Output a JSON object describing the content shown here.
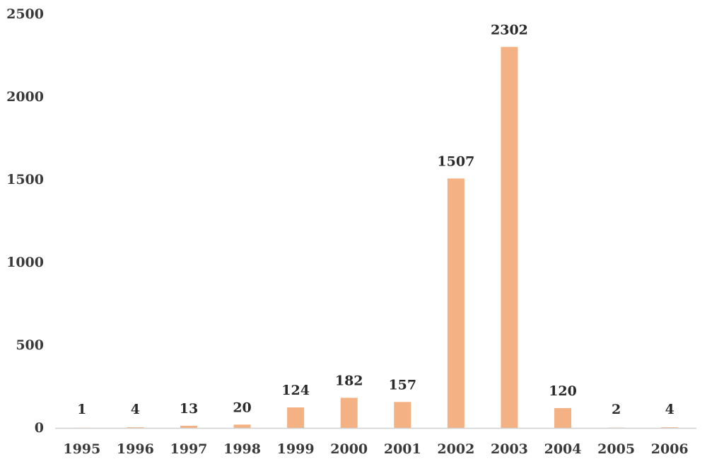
{
  "chart_data": {
    "type": "bar",
    "title": "",
    "xlabel": "",
    "ylabel": "",
    "categories": [
      "1995",
      "1996",
      "1997",
      "1998",
      "1999",
      "2000",
      "2001",
      "2002",
      "2003",
      "2004",
      "2005",
      "2006"
    ],
    "values": [
      1,
      4,
      13,
      20,
      124,
      182,
      157,
      1507,
      2302,
      120,
      2,
      4
    ],
    "data_labels": [
      "1",
      "4",
      "13",
      "20",
      "124",
      "182",
      "157",
      "1507",
      "2302",
      "120",
      "2",
      "4"
    ],
    "ylim": [
      0,
      2500
    ],
    "yticks": [
      "0",
      "500",
      "1000",
      "1500",
      "2000",
      "2500"
    ],
    "grid": false,
    "legend": "none",
    "bar_color": "#F4B183",
    "axis_color": "#D0D0D0"
  }
}
